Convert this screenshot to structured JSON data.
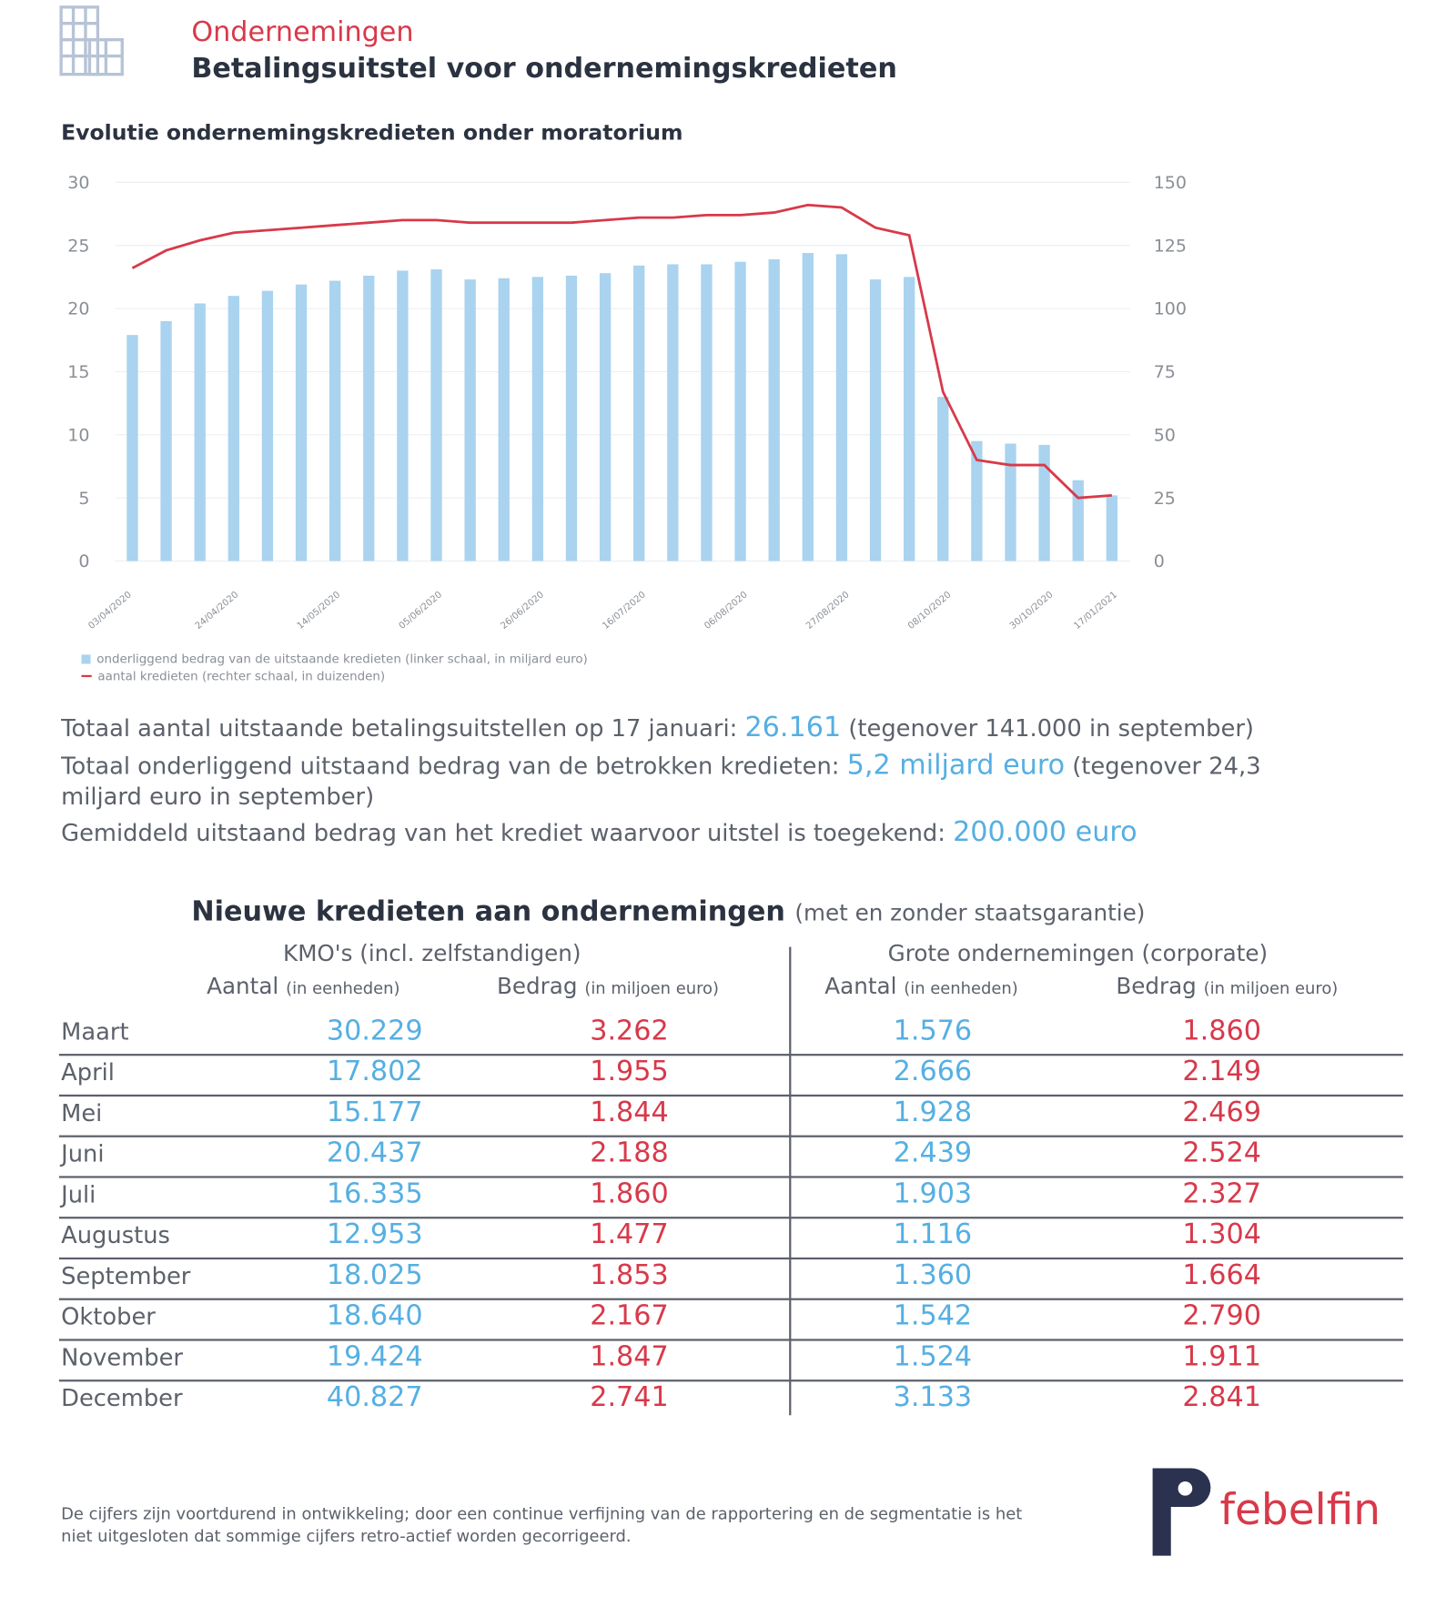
{
  "header": {
    "category": "Ondernemingen",
    "title": "Betalingsuitstel voor ondernemingskredieten",
    "icon": "building-icon"
  },
  "colors": {
    "red": "#d8394a",
    "blue": "#55afe3",
    "bar": "#a9d3ef",
    "dark": "#2b3240"
  },
  "chart_data": {
    "type": "bar+line",
    "title": "Evolutie ondernemingskredieten onder moratorium",
    "x_tick_labels": [
      "03/04/2020",
      "24/04/2020",
      "14/05/2020",
      "05/06/2020",
      "26/06/2020",
      "16/07/2020",
      "06/08/2020",
      "27/08/2020",
      "08/10/2020",
      "30/10/2020",
      "17/01/2021"
    ],
    "y_left": {
      "ylim": [
        0,
        30
      ],
      "ticks": [
        0,
        5,
        10,
        15,
        20,
        25,
        30
      ]
    },
    "y_right": {
      "ylim": [
        0,
        150
      ],
      "ticks": [
        0,
        25,
        50,
        75,
        100,
        125,
        150
      ]
    },
    "grid": true,
    "legend_position": "bottom-left",
    "series": [
      {
        "name": "onderliggend bedrag van de uitstaande kredieten (linker schaal, in miljard euro)",
        "type": "bar",
        "axis": "left",
        "values": [
          17.9,
          19.0,
          20.4,
          21.0,
          21.4,
          21.9,
          22.2,
          22.6,
          23.0,
          23.1,
          22.3,
          22.4,
          22.5,
          22.6,
          22.8,
          23.4,
          23.5,
          23.5,
          23.7,
          23.9,
          24.4,
          24.3,
          22.3,
          22.5,
          13.0,
          9.5,
          9.3,
          9.2,
          6.4,
          5.2
        ]
      },
      {
        "name": "aantal kredieten (rechter schaal, in duizenden)",
        "type": "line",
        "axis": "right",
        "values": [
          116,
          123,
          127,
          130,
          131,
          132,
          133,
          134,
          135,
          135,
          134,
          134,
          134,
          134,
          135,
          136,
          136,
          137,
          137,
          138,
          141,
          140,
          132,
          129,
          67,
          40,
          38,
          38,
          25,
          26
        ]
      }
    ]
  },
  "stats": {
    "line1_pre": "Totaal aantal uitstaande betalingsuitstellen op 17 januari: ",
    "line1_value": "26.161",
    "line1_post": " (tegenover 141.000 in september)",
    "line2_pre": "Totaal onderliggend uitstaand bedrag van de betrokken kredieten: ",
    "line2_value": "5,2 miljard euro",
    "line2_post": " (tegenover 24,3 miljard euro in september)",
    "line3_pre": "Gemiddeld uitstaand bedrag van het krediet waarvoor uitstel is toegekend: ",
    "line3_value": "200.000 euro"
  },
  "table": {
    "title": "Nieuwe kredieten aan ondernemingen",
    "subtitle": "(met en zonder staatsgarantie)",
    "group1": "KMO's (incl. zelfstandigen)",
    "group2": "Grote ondernemingen (corporate)",
    "col_aantal": "Aantal",
    "col_aantal_unit": "(in eenheden)",
    "col_bedrag": "Bedrag",
    "col_bedrag_unit": "(in miljoen euro)",
    "rows": [
      {
        "month": "Maart",
        "kmo_aantal": "30.229",
        "kmo_bedrag": "3.262",
        "grote_aantal": "1.576",
        "grote_bedrag": "1.860"
      },
      {
        "month": "April",
        "kmo_aantal": "17.802",
        "kmo_bedrag": "1.955",
        "grote_aantal": "2.666",
        "grote_bedrag": "2.149"
      },
      {
        "month": "Mei",
        "kmo_aantal": "15.177",
        "kmo_bedrag": "1.844",
        "grote_aantal": "1.928",
        "grote_bedrag": "2.469"
      },
      {
        "month": "Juni",
        "kmo_aantal": "20.437",
        "kmo_bedrag": "2.188",
        "grote_aantal": "2.439",
        "grote_bedrag": "2.524"
      },
      {
        "month": "Juli",
        "kmo_aantal": "16.335",
        "kmo_bedrag": "1.860",
        "grote_aantal": "1.903",
        "grote_bedrag": "2.327"
      },
      {
        "month": "Augustus",
        "kmo_aantal": "12.953",
        "kmo_bedrag": "1.477",
        "grote_aantal": "1.116",
        "grote_bedrag": "1.304"
      },
      {
        "month": "September",
        "kmo_aantal": "18.025",
        "kmo_bedrag": "1.853",
        "grote_aantal": "1.360",
        "grote_bedrag": "1.664"
      },
      {
        "month": "Oktober",
        "kmo_aantal": "18.640",
        "kmo_bedrag": "2.167",
        "grote_aantal": "1.542",
        "grote_bedrag": "2.790"
      },
      {
        "month": "November",
        "kmo_aantal": "19.424",
        "kmo_bedrag": "1.847",
        "grote_aantal": "1.524",
        "grote_bedrag": "1.911"
      },
      {
        "month": "December",
        "kmo_aantal": "40.827",
        "kmo_bedrag": "2.741",
        "grote_aantal": "3.133",
        "grote_bedrag": "2.841"
      }
    ]
  },
  "footnote": "De cijfers zijn voortdurend in ontwikkeling; door een continue verfijning van de rapportering en de segmentatie is het niet uitgesloten dat sommige cijfers retro-actief worden gecorrigeerd.",
  "logo": {
    "text": "febelfin"
  }
}
